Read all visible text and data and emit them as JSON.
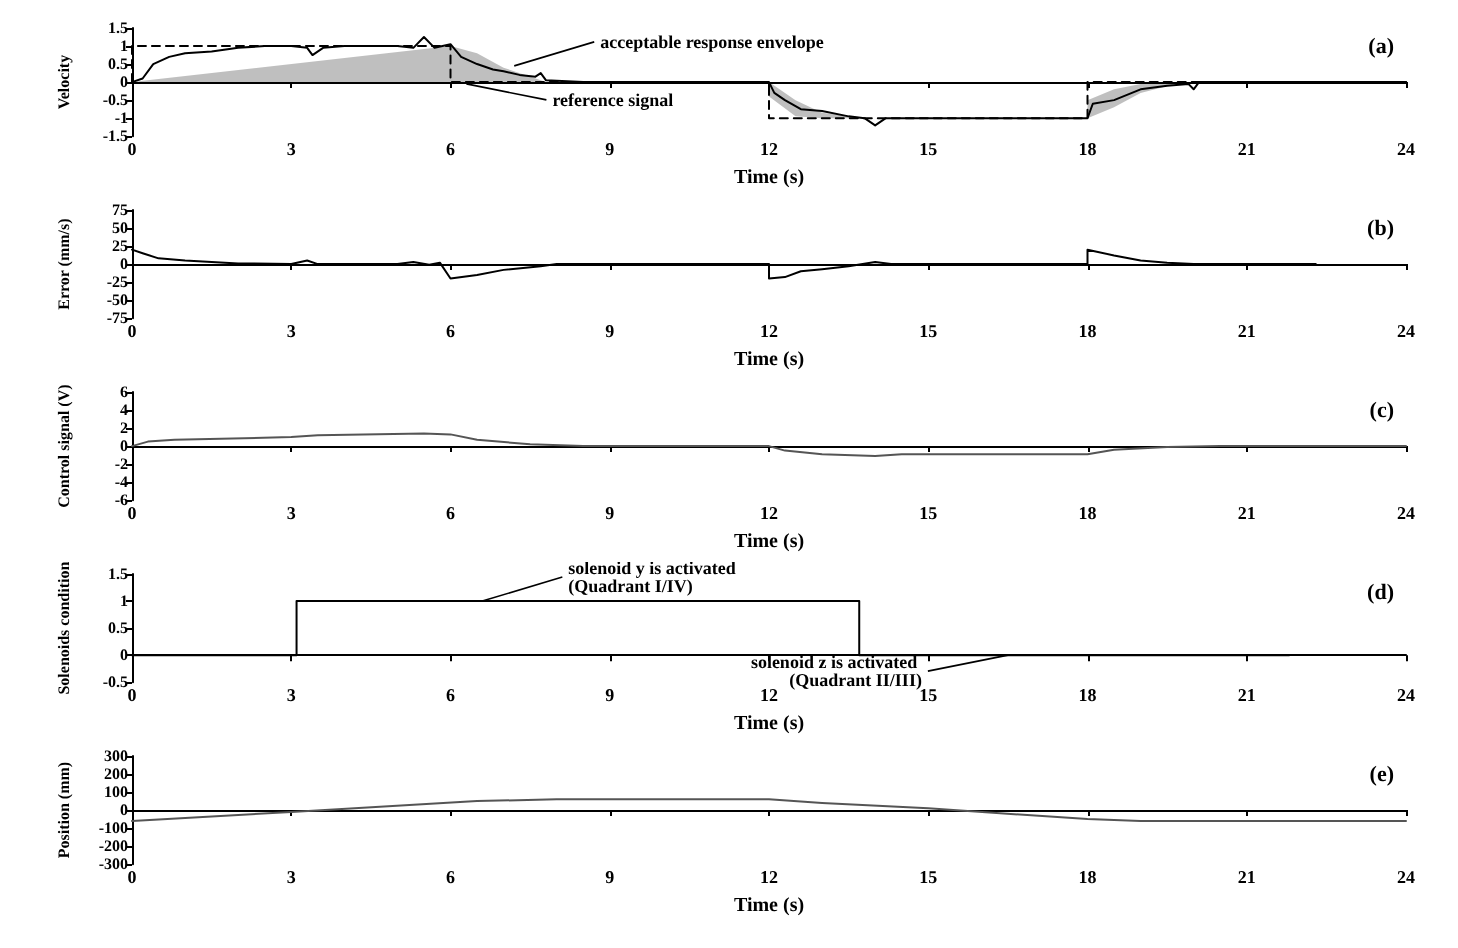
{
  "chart_data": [
    {
      "type": "line",
      "xlabel": "Time (s)",
      "ylabel": "Velocity",
      "xlim": [
        0,
        24
      ],
      "xticks": [
        0,
        3,
        6,
        9,
        12,
        15,
        18,
        21,
        24
      ],
      "ylim": [
        -1.5,
        1.5
      ],
      "yticks": [
        -1.5,
        -1,
        -0.5,
        0,
        0.5,
        1,
        1.5
      ],
      "annotations": [
        "(a)",
        {
          "text": "acceptable response envelope",
          "x": 7.2,
          "y": 0.45
        },
        {
          "text": "reference signal",
          "x": 6.3,
          "y": -0.05
        }
      ],
      "series": [
        {
          "color": "#000000",
          "line_style": "dashed",
          "x": [
            0,
            0,
            6,
            6,
            6.5,
            7,
            7.8,
            12,
            12,
            12.5,
            13,
            13.8,
            18,
            18,
            18.5,
            19,
            19.8,
            24
          ],
          "values": [
            0,
            1,
            1,
            0,
            0,
            0,
            0,
            0,
            -1,
            -1,
            -1,
            -1,
            -1,
            0,
            0,
            0,
            0,
            0
          ],
          "lower": [
            0,
            0,
            0,
            0,
            0,
            0,
            0,
            0,
            -0.4,
            -0.95,
            -1,
            -1,
            -1,
            -1,
            -0.7,
            -0.3,
            0,
            0
          ],
          "upper": [
            0,
            0,
            1,
            1,
            0.8,
            0.4,
            0,
            0,
            0,
            -0.5,
            -0.85,
            -1,
            -1,
            -0.5,
            -0.2,
            -0.05,
            0,
            0
          ]
        },
        {
          "color": "#000000",
          "x": [
            0,
            0.2,
            0.4,
            0.7,
            1,
            1.5,
            2,
            2.5,
            3,
            3.3,
            3.4,
            3.6,
            4,
            4.5,
            5,
            5.3,
            5.5,
            5.7,
            6,
            6.2,
            6.5,
            6.8,
            7,
            7.3,
            7.6,
            7.7,
            7.8,
            8.5,
            12,
            12.1,
            12.3,
            12.6,
            13,
            13.5,
            13.8,
            14,
            14.2,
            15,
            16,
            17,
            18,
            18.1,
            18.5,
            19,
            19.5,
            19.9,
            20,
            20.1,
            24
          ],
          "values": [
            0,
            0.1,
            0.5,
            0.7,
            0.8,
            0.85,
            0.95,
            1,
            1,
            0.95,
            0.75,
            0.95,
            1,
            1,
            1,
            0.95,
            1.25,
            0.95,
            1.05,
            0.7,
            0.5,
            0.35,
            0.3,
            0.2,
            0.15,
            0.25,
            0.05,
            0,
            0,
            -0.3,
            -0.5,
            -0.75,
            -0.8,
            -0.95,
            -1,
            -1.2,
            -1,
            -1,
            -1,
            -1,
            -1,
            -0.6,
            -0.5,
            -0.2,
            -0.1,
            -0.05,
            -0.2,
            0,
            0
          ]
        }
      ]
    },
    {
      "type": "line",
      "xlabel": "Time (s)",
      "ylabel": "Error (mm/s)",
      "xlim": [
        0,
        24
      ],
      "xticks": [
        0,
        3,
        6,
        9,
        12,
        15,
        18,
        21,
        24
      ],
      "ylim": [
        -75,
        75
      ],
      "yticks": [
        -75,
        -50,
        -25,
        0,
        25,
        50,
        75
      ],
      "annotations": [
        "(b)"
      ],
      "series": [
        {
          "color": "#000000",
          "x": [
            0,
            0.2,
            0.5,
            1,
            2,
            3,
            3.3,
            3.5,
            5,
            5.3,
            5.6,
            5.8,
            6,
            6.5,
            7,
            7.7,
            8,
            12,
            12,
            12.3,
            12.6,
            13,
            13.5,
            14,
            14.3,
            18,
            18,
            18.5,
            19,
            19.5,
            20,
            22.3
          ],
          "values": [
            20,
            15,
            8,
            5,
            1,
            0,
            5,
            0,
            0,
            3,
            -1,
            2,
            -20,
            -15,
            -8,
            -3,
            0,
            0,
            -20,
            -18,
            -10,
            -7,
            -3,
            3,
            0,
            0,
            20,
            12,
            5,
            2,
            0,
            0
          ]
        }
      ]
    },
    {
      "type": "line",
      "xlabel": "Time (s)",
      "ylabel": "Control signal (V)",
      "xlim": [
        0,
        24
      ],
      "xticks": [
        0,
        3,
        6,
        9,
        12,
        15,
        18,
        21,
        24
      ],
      "ylim": [
        -6,
        6
      ],
      "yticks": [
        -6,
        -4,
        -2,
        0,
        2,
        4,
        6
      ],
      "annotations": [
        "(c)"
      ],
      "series": [
        {
          "color": "#555555",
          "x": [
            0,
            0.3,
            0.8,
            3,
            3.5,
            5.5,
            6,
            6.5,
            7.5,
            8.5,
            12,
            12.3,
            13,
            14,
            14.5,
            18,
            18.5,
            19.5,
            20.5,
            24
          ],
          "values": [
            0,
            0.5,
            0.7,
            1,
            1.2,
            1.4,
            1.3,
            0.7,
            0.2,
            0,
            0,
            -0.5,
            -0.9,
            -1.1,
            -0.9,
            -0.9,
            -0.4,
            -0.1,
            0,
            0
          ]
        }
      ]
    },
    {
      "type": "line",
      "xlabel": "Time (s)",
      "ylabel": "Solenoids condition",
      "xlim": [
        0,
        24
      ],
      "xticks": [
        0,
        3,
        6,
        9,
        12,
        15,
        18,
        21,
        24
      ],
      "ylim": [
        -0.5,
        1.5
      ],
      "yticks": [
        -0.5,
        0,
        0.5,
        1,
        1.5
      ],
      "annotations": [
        "(d)",
        {
          "text": "solenoid y is activated (Quadrant I/IV)",
          "x": 6.6,
          "y": 1
        },
        {
          "text": "solenoid z is activated (Quadrant II/III)",
          "x": 16.5,
          "y": 0
        }
      ],
      "series": [
        {
          "color": "#000000",
          "x": [
            0,
            3.1,
            3.1,
            13.7,
            13.7,
            21.8
          ],
          "values": [
            0,
            0,
            1,
            1,
            0,
            0
          ]
        }
      ]
    },
    {
      "type": "line",
      "xlabel": "Time (s)",
      "ylabel": "Position (mm)",
      "xlim": [
        0,
        24
      ],
      "xticks": [
        0,
        3,
        6,
        9,
        12,
        15,
        18,
        21,
        24
      ],
      "ylim": [
        -300,
        300
      ],
      "yticks": [
        -300,
        -200,
        -100,
        0,
        100,
        200,
        300
      ],
      "annotations": [
        "(e)"
      ],
      "series": [
        {
          "color": "#555555",
          "x": [
            0,
            3,
            6.5,
            8,
            12,
            13,
            15,
            18,
            19,
            24
          ],
          "values": [
            -60,
            -10,
            50,
            60,
            60,
            40,
            10,
            -50,
            -60,
            -60
          ]
        }
      ]
    }
  ]
}
